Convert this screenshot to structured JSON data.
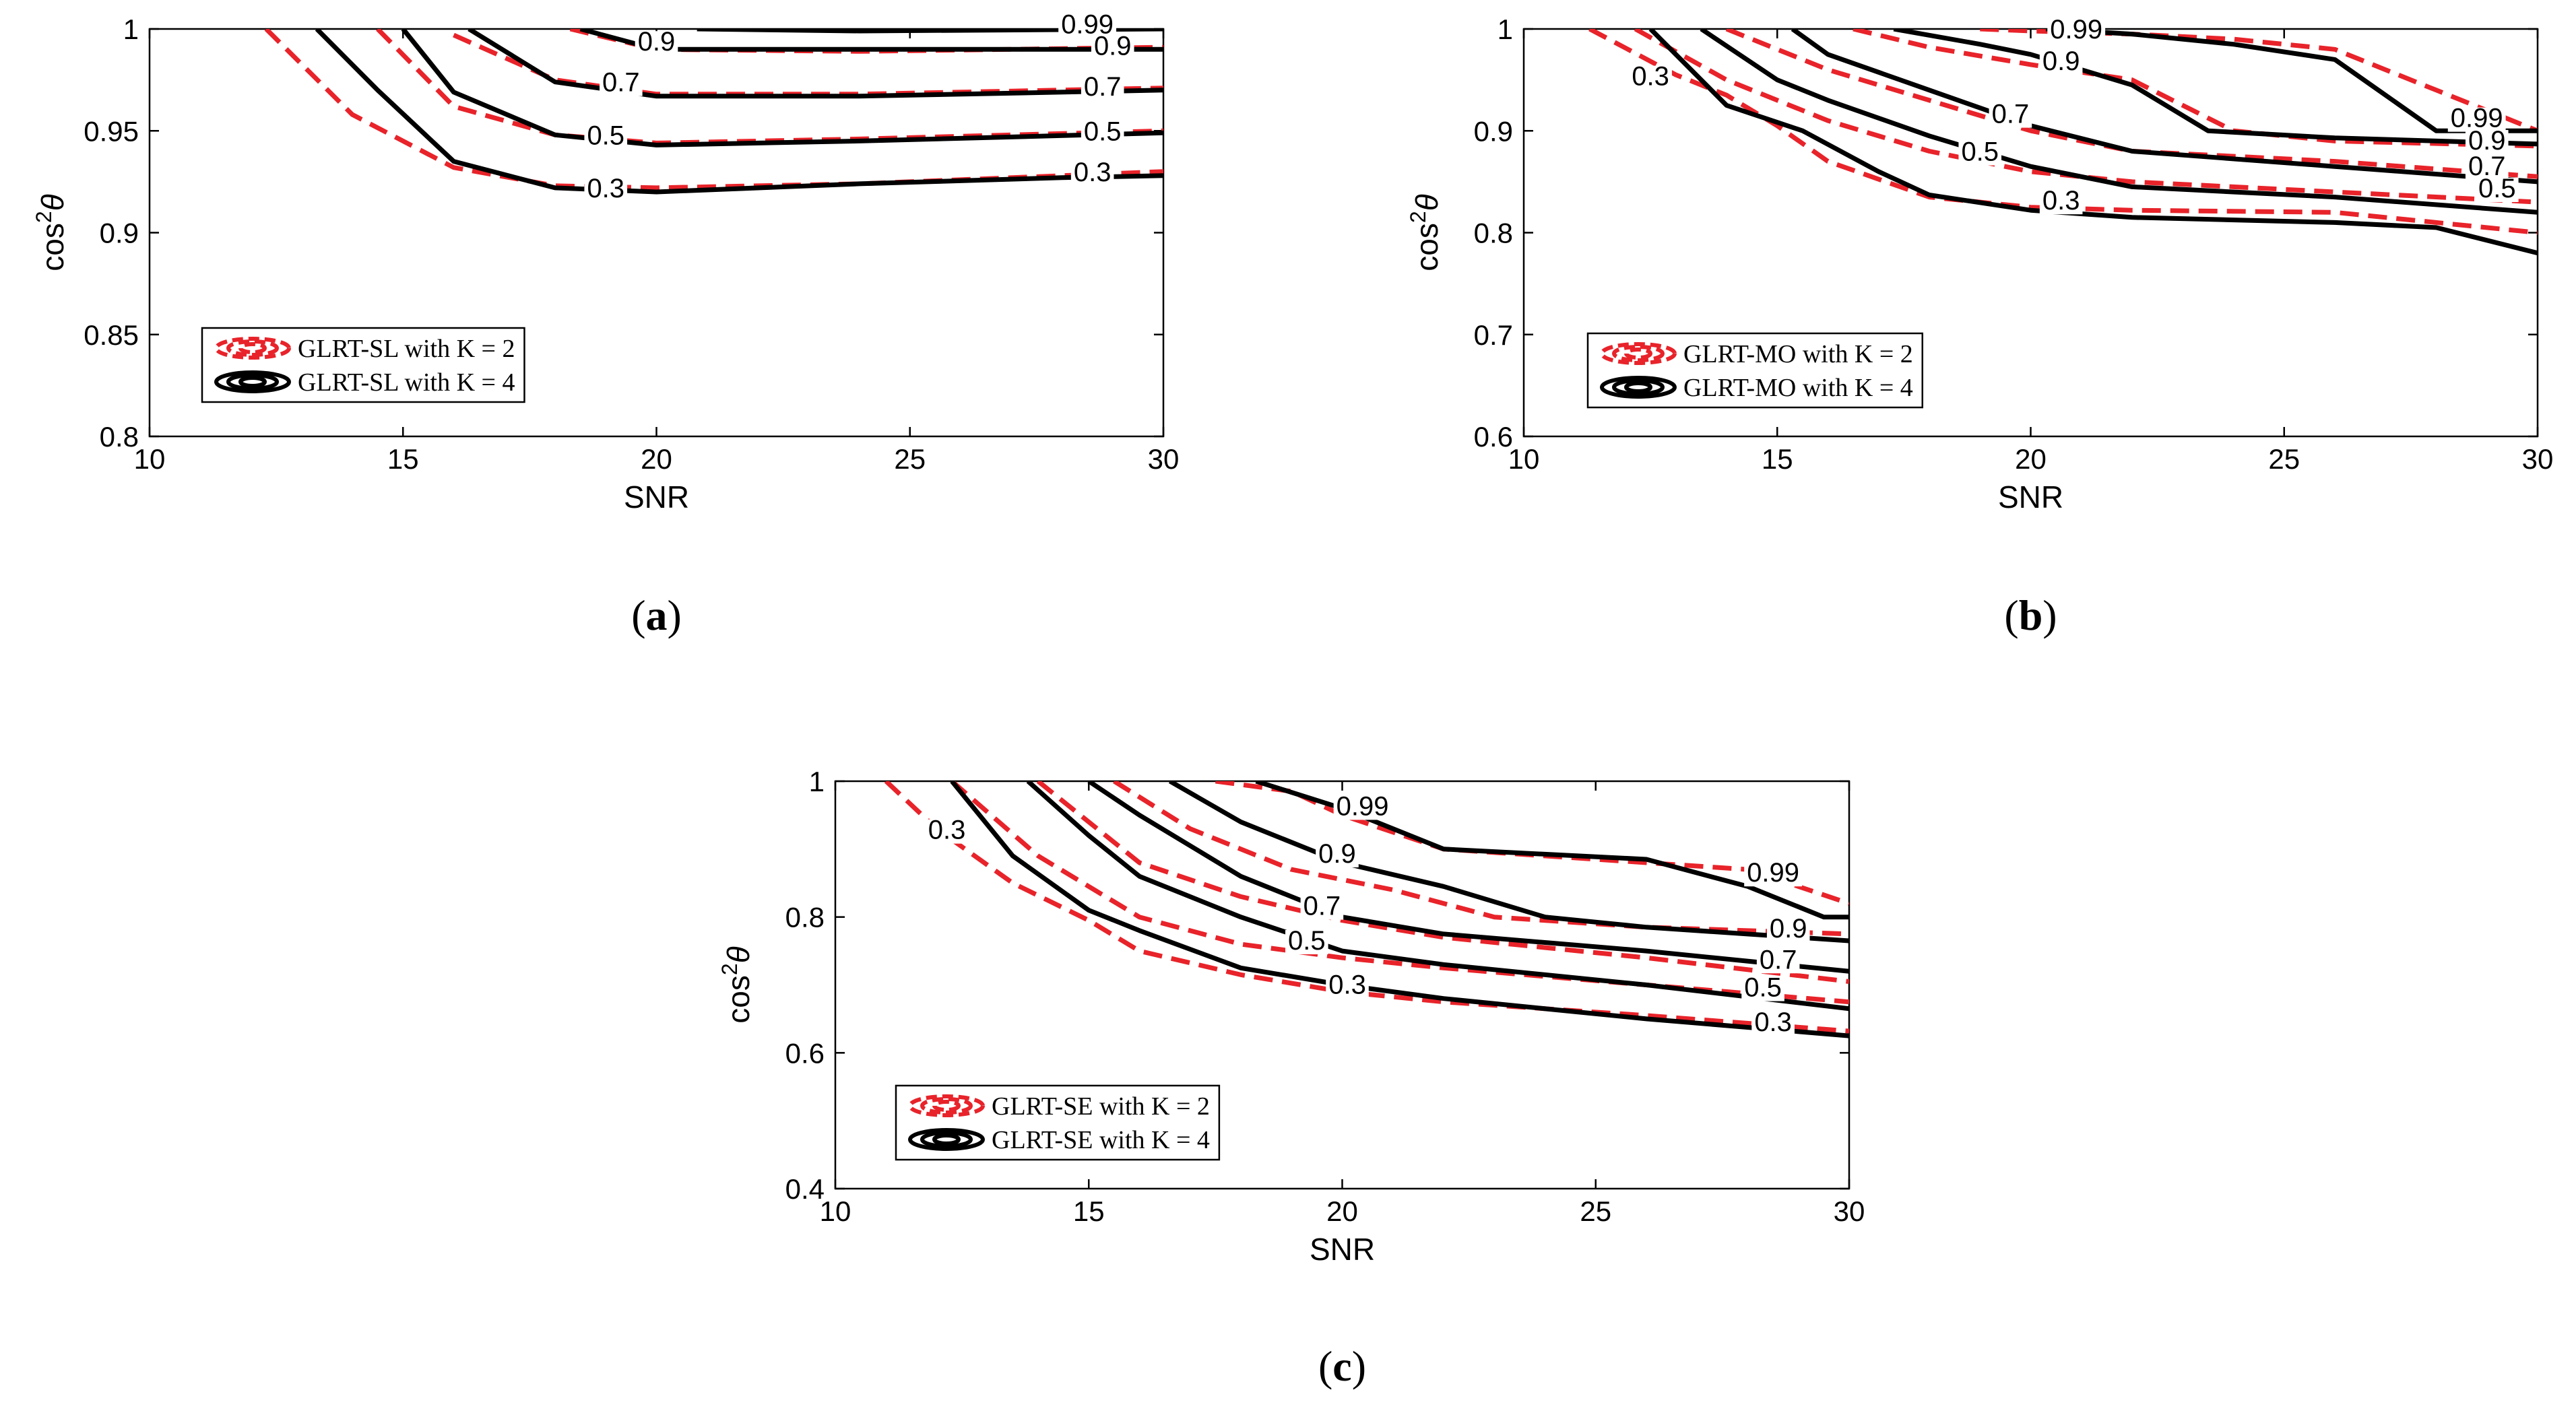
{
  "chart_data": [
    {
      "type": "line",
      "panel": "a",
      "caption_letter": "a",
      "xlabel": "SNR",
      "ylabel": "cos",
      "ylabel_sup": "2",
      "ylabel_symbol": "θ",
      "xlim": [
        10,
        30
      ],
      "ylim": [
        0.8,
        1
      ],
      "xticks": [
        10,
        15,
        20,
        25,
        30
      ],
      "xtick_labels": [
        "10",
        "15",
        "20",
        "25",
        "30"
      ],
      "yticks": [
        0.8,
        0.85,
        0.9,
        0.95,
        1
      ],
      "ytick_labels": [
        "0.8",
        "0.85",
        "0.9",
        "0.95",
        "1"
      ],
      "legend": [
        {
          "name": "GLRT-SL with K = 2",
          "color": "#e8232a",
          "style": "dashed"
        },
        {
          "name": "GLRT-SL with K = 4",
          "color": "#000000",
          "style": "solid"
        }
      ],
      "series": [
        {
          "name": "GLRT-SL with K = 2",
          "style": "dashed",
          "color": "#e8232a",
          "level": "0.3",
          "x": [
            12.3,
            14,
            16,
            18,
            20,
            24,
            28,
            30
          ],
          "y": [
            1,
            0.958,
            0.932,
            0.923,
            0.922,
            0.924,
            0.928,
            0.93
          ]
        },
        {
          "name": "GLRT-SL with K = 2",
          "style": "dashed",
          "color": "#e8232a",
          "level": "0.5",
          "x": [
            14.5,
            16,
            18,
            20,
            24,
            30
          ],
          "y": [
            1,
            0.962,
            0.948,
            0.944,
            0.946,
            0.95
          ]
        },
        {
          "name": "GLRT-SL with K = 2",
          "style": "dashed",
          "color": "#e8232a",
          "level": "0.7",
          "x": [
            16,
            18,
            20,
            24,
            30
          ],
          "y": [
            0.997,
            0.975,
            0.968,
            0.968,
            0.971
          ]
        },
        {
          "name": "GLRT-SL with K = 2",
          "style": "dashed",
          "color": "#e8232a",
          "level": "0.9",
          "x": [
            18.3,
            20,
            24,
            30
          ],
          "y": [
            1,
            0.99,
            0.989,
            0.991
          ]
        },
        {
          "name": "GLRT-SL with K = 4",
          "style": "solid",
          "color": "#000000",
          "level": "0.3",
          "x": [
            13.3,
            14.5,
            16,
            18,
            20,
            24,
            28,
            30
          ],
          "y": [
            1,
            0.97,
            0.935,
            0.922,
            0.92,
            0.924,
            0.927,
            0.928
          ]
        },
        {
          "name": "GLRT-SL with K = 4",
          "style": "solid",
          "color": "#000000",
          "level": "0.5",
          "x": [
            15,
            16,
            18,
            20,
            24,
            30
          ],
          "y": [
            1,
            0.969,
            0.948,
            0.943,
            0.945,
            0.949
          ]
        },
        {
          "name": "GLRT-SL with K = 4",
          "style": "solid",
          "color": "#000000",
          "level": "0.7",
          "x": [
            16.3,
            18,
            20,
            24,
            30
          ],
          "y": [
            1,
            0.974,
            0.967,
            0.967,
            0.97
          ]
        },
        {
          "name": "GLRT-SL with K = 4",
          "style": "solid",
          "color": "#000000",
          "level": "0.9",
          "x": [
            18.5,
            20,
            24,
            30
          ],
          "y": [
            1,
            0.99,
            0.99,
            0.99
          ]
        },
        {
          "name": "GLRT-SL with K = 4",
          "style": "solid",
          "color": "#000000",
          "level": "0.99",
          "x": [
            20.8,
            24,
            30
          ],
          "y": [
            1,
            0.999,
            1
          ]
        }
      ],
      "contour_labels": [
        {
          "text": "0.3",
          "x": 19.0,
          "y": 0.919
        },
        {
          "text": "0.5",
          "x": 19.0,
          "y": 0.945
        },
        {
          "text": "0.7",
          "x": 19.3,
          "y": 0.971
        },
        {
          "text": "0.9",
          "x": 20.0,
          "y": 0.991
        },
        {
          "text": "0.99",
          "x": 28.5,
          "y": 0.9995
        },
        {
          "text": "0.9",
          "x": 29.0,
          "y": 0.989
        },
        {
          "text": "0.7",
          "x": 28.8,
          "y": 0.969
        },
        {
          "text": "0.5",
          "x": 28.8,
          "y": 0.947
        },
        {
          "text": "0.3",
          "x": 28.6,
          "y": 0.927
        }
      ]
    },
    {
      "type": "line",
      "panel": "b",
      "caption_letter": "b",
      "xlabel": "SNR",
      "ylabel": "cos",
      "ylabel_sup": "2",
      "ylabel_symbol": "θ",
      "xlim": [
        10,
        30
      ],
      "ylim": [
        0.6,
        1
      ],
      "xticks": [
        10,
        15,
        20,
        25,
        30
      ],
      "xtick_labels": [
        "10",
        "15",
        "20",
        "25",
        "30"
      ],
      "yticks": [
        0.6,
        0.7,
        0.8,
        0.9,
        1
      ],
      "ytick_labels": [
        "0.6",
        "0.7",
        "0.8",
        "0.9",
        "1"
      ],
      "legend": [
        {
          "name": "GLRT-MO with K = 2",
          "color": "#e8232a",
          "style": "dashed"
        },
        {
          "name": "GLRT-MO with K = 4",
          "color": "#000000",
          "style": "solid"
        }
      ],
      "series": [
        {
          "name": "GLRT-MO with K = 2",
          "style": "dashed",
          "color": "#e8232a",
          "level": "0.3",
          "x": [
            11.3,
            13,
            14,
            15,
            16,
            18,
            20,
            22,
            26,
            30
          ],
          "y": [
            1,
            0.955,
            0.935,
            0.905,
            0.87,
            0.835,
            0.825,
            0.822,
            0.82,
            0.8
          ]
        },
        {
          "name": "GLRT-MO with K = 2",
          "style": "dashed",
          "color": "#e8232a",
          "level": "0.5",
          "x": [
            12.2,
            14,
            16,
            18,
            20,
            22,
            26,
            30
          ],
          "y": [
            1,
            0.95,
            0.91,
            0.88,
            0.86,
            0.85,
            0.84,
            0.83
          ]
        },
        {
          "name": "GLRT-MO with K = 2",
          "style": "dashed",
          "color": "#e8232a",
          "level": "0.7",
          "x": [
            14,
            16,
            18,
            20,
            22,
            26,
            30
          ],
          "y": [
            1,
            0.96,
            0.93,
            0.9,
            0.88,
            0.87,
            0.855
          ]
        },
        {
          "name": "GLRT-MO with K = 2",
          "style": "dashed",
          "color": "#e8232a",
          "level": "0.9",
          "x": [
            16.5,
            18,
            20,
            22,
            24,
            26,
            30
          ],
          "y": [
            1,
            0.982,
            0.965,
            0.95,
            0.9,
            0.89,
            0.885
          ]
        },
        {
          "name": "GLRT-MO with K = 2",
          "style": "dashed",
          "color": "#e8232a",
          "level": "0.99",
          "x": [
            19,
            20,
            22,
            24,
            26,
            28,
            30
          ],
          "y": [
            1,
            0.998,
            0.995,
            0.99,
            0.98,
            0.94,
            0.9
          ]
        },
        {
          "name": "GLRT-MO with K = 4",
          "style": "solid",
          "color": "#000000",
          "level": "0.3",
          "x": [
            12.5,
            14,
            15.5,
            17,
            18,
            20,
            22,
            26,
            28,
            30
          ],
          "y": [
            1,
            0.925,
            0.9,
            0.86,
            0.837,
            0.822,
            0.815,
            0.81,
            0.805,
            0.78
          ]
        },
        {
          "name": "GLRT-MO with K = 4",
          "style": "solid",
          "color": "#000000",
          "level": "0.5",
          "x": [
            13.5,
            15,
            16,
            18,
            20,
            22,
            26,
            30
          ],
          "y": [
            1,
            0.95,
            0.93,
            0.895,
            0.865,
            0.845,
            0.835,
            0.82
          ]
        },
        {
          "name": "GLRT-MO with K = 4",
          "style": "solid",
          "color": "#000000",
          "level": "0.7",
          "x": [
            15.3,
            16,
            18,
            20,
            22,
            26,
            30
          ],
          "y": [
            1,
            0.975,
            0.94,
            0.905,
            0.88,
            0.865,
            0.85
          ]
        },
        {
          "name": "GLRT-MO with K = 4",
          "style": "solid",
          "color": "#000000",
          "level": "0.9",
          "x": [
            17.3,
            19,
            20,
            22,
            23.5,
            26,
            30
          ],
          "y": [
            1,
            0.985,
            0.975,
            0.945,
            0.9,
            0.893,
            0.887
          ]
        },
        {
          "name": "GLRT-MO with K = 4",
          "style": "solid",
          "color": "#000000",
          "level": "0.99",
          "x": [
            20.3,
            22,
            24,
            26,
            28,
            30
          ],
          "y": [
            1,
            0.995,
            0.985,
            0.97,
            0.9,
            0.9
          ]
        }
      ],
      "contour_labels": [
        {
          "text": "0.3",
          "x": 12.5,
          "y": 0.948
        },
        {
          "text": "0.99",
          "x": 20.9,
          "y": 0.994
        },
        {
          "text": "0.9",
          "x": 20.6,
          "y": 0.963
        },
        {
          "text": "0.7",
          "x": 19.6,
          "y": 0.911
        },
        {
          "text": "0.5",
          "x": 19.0,
          "y": 0.874
        },
        {
          "text": "0.3",
          "x": 20.6,
          "y": 0.826
        },
        {
          "text": "0.99",
          "x": 28.8,
          "y": 0.907
        },
        {
          "text": "0.9",
          "x": 29.0,
          "y": 0.885
        },
        {
          "text": "0.7",
          "x": 29.0,
          "y": 0.86
        },
        {
          "text": "0.5",
          "x": 29.2,
          "y": 0.838
        }
      ]
    },
    {
      "type": "line",
      "panel": "c",
      "caption_letter": "c",
      "xlabel": "SNR",
      "ylabel": "cos",
      "ylabel_sup": "2",
      "ylabel_symbol": "θ",
      "xlim": [
        10,
        30
      ],
      "ylim": [
        0.4,
        1
      ],
      "xticks": [
        10,
        15,
        20,
        25,
        30
      ],
      "xtick_labels": [
        "10",
        "15",
        "20",
        "25",
        "30"
      ],
      "yticks": [
        0.4,
        0.6,
        0.8,
        1
      ],
      "ytick_labels": [
        "0.4",
        "0.6",
        "0.8",
        "1"
      ],
      "legend": [
        {
          "name": "GLRT-SE with K = 2",
          "color": "#e8232a",
          "style": "dashed"
        },
        {
          "name": "GLRT-SE with K = 4",
          "color": "#000000",
          "style": "solid"
        }
      ],
      "series": [
        {
          "name": "GLRT-SE with K = 2",
          "style": "dashed",
          "color": "#e8232a",
          "level": "0.3",
          "x": [
            11,
            12,
            13.5,
            15,
            16,
            18,
            20,
            22,
            26,
            30
          ],
          "y": [
            1,
            0.93,
            0.85,
            0.795,
            0.75,
            0.715,
            0.69,
            0.675,
            0.655,
            0.632
          ]
        },
        {
          "name": "GLRT-SE with K = 2",
          "style": "dashed",
          "color": "#e8232a",
          "level": "0.5",
          "x": [
            12.3,
            14,
            16,
            18,
            20,
            22,
            26,
            30
          ],
          "y": [
            1,
            0.89,
            0.8,
            0.76,
            0.74,
            0.725,
            0.7,
            0.675
          ]
        },
        {
          "name": "GLRT-SE with K = 2",
          "style": "dashed",
          "color": "#e8232a",
          "level": "0.7",
          "x": [
            14,
            16,
            18,
            20,
            22,
            26,
            30
          ],
          "y": [
            1,
            0.88,
            0.83,
            0.795,
            0.77,
            0.74,
            0.705
          ]
        },
        {
          "name": "GLRT-SE with K = 2",
          "style": "dashed",
          "color": "#e8232a",
          "level": "0.9",
          "x": [
            15.5,
            17,
            19,
            21,
            23,
            26,
            30
          ],
          "y": [
            1,
            0.93,
            0.87,
            0.84,
            0.8,
            0.785,
            0.775
          ]
        },
        {
          "name": "GLRT-SE with K = 2",
          "style": "dashed",
          "color": "#e8232a",
          "level": "0.99",
          "x": [
            17.5,
            19,
            20,
            22,
            26,
            28,
            30
          ],
          "y": [
            1,
            0.985,
            0.95,
            0.9,
            0.88,
            0.87,
            0.82
          ]
        },
        {
          "name": "GLRT-SE with K = 4",
          "style": "solid",
          "color": "#000000",
          "level": "0.3",
          "x": [
            12.3,
            13.5,
            15,
            16,
            18,
            20,
            22,
            26,
            30
          ],
          "y": [
            1,
            0.89,
            0.81,
            0.78,
            0.725,
            0.7,
            0.68,
            0.65,
            0.625
          ]
        },
        {
          "name": "GLRT-SE with K = 4",
          "style": "solid",
          "color": "#000000",
          "level": "0.5",
          "x": [
            13.8,
            15,
            16,
            18,
            20,
            22,
            26,
            30
          ],
          "y": [
            1,
            0.92,
            0.86,
            0.8,
            0.75,
            0.73,
            0.7,
            0.665
          ]
        },
        {
          "name": "GLRT-SE with K = 4",
          "style": "solid",
          "color": "#000000",
          "level": "0.7",
          "x": [
            15,
            16,
            18,
            20,
            22,
            26,
            30
          ],
          "y": [
            1,
            0.95,
            0.86,
            0.8,
            0.775,
            0.75,
            0.72
          ]
        },
        {
          "name": "GLRT-SE with K = 4",
          "style": "solid",
          "color": "#000000",
          "level": "0.9",
          "x": [
            16.6,
            18,
            20,
            22,
            24,
            26,
            30
          ],
          "y": [
            1,
            0.94,
            0.88,
            0.845,
            0.8,
            0.785,
            0.765
          ]
        },
        {
          "name": "GLRT-SE with K = 4",
          "style": "solid",
          "color": "#000000",
          "level": "0.99",
          "x": [
            18.3,
            20,
            22,
            26,
            28,
            29.5,
            30
          ],
          "y": [
            1,
            0.96,
            0.9,
            0.885,
            0.845,
            0.8,
            0.8
          ]
        }
      ],
      "contour_labels": [
        {
          "text": "0.3",
          "x": 12.2,
          "y": 0.92
        },
        {
          "text": "0.99",
          "x": 20.4,
          "y": 0.955
        },
        {
          "text": "0.9",
          "x": 19.9,
          "y": 0.885
        },
        {
          "text": "0.7",
          "x": 19.6,
          "y": 0.808
        },
        {
          "text": "0.5",
          "x": 19.3,
          "y": 0.757
        },
        {
          "text": "0.3",
          "x": 20.1,
          "y": 0.692
        },
        {
          "text": "0.99",
          "x": 28.5,
          "y": 0.857
        },
        {
          "text": "0.9",
          "x": 28.8,
          "y": 0.775
        },
        {
          "text": "0.7",
          "x": 28.6,
          "y": 0.729
        },
        {
          "text": "0.5",
          "x": 28.3,
          "y": 0.688
        },
        {
          "text": "0.3",
          "x": 28.5,
          "y": 0.637
        }
      ]
    }
  ]
}
